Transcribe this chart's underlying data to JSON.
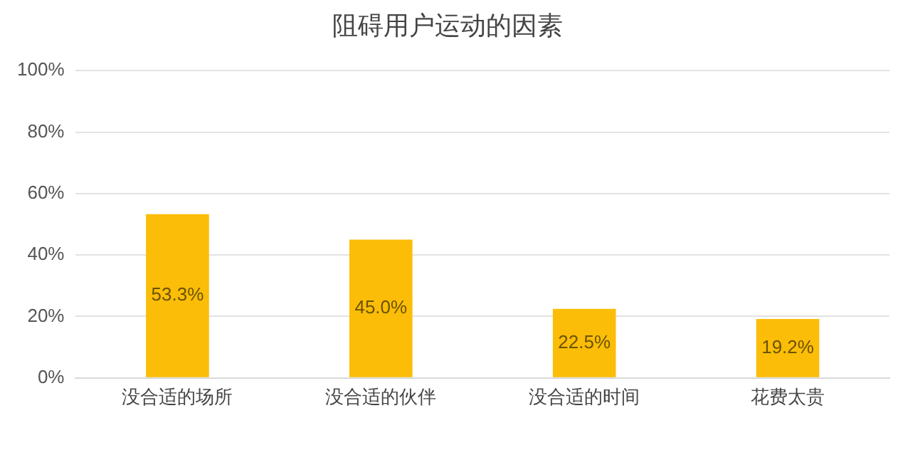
{
  "chart_data": {
    "type": "bar",
    "title": "阻碍用户运动的因素",
    "categories": [
      "没合适的场所",
      "没合适的伙伴",
      "没合适的时间",
      "花费太贵"
    ],
    "values": [
      53.3,
      45.0,
      22.5,
      19.2
    ],
    "color": "#fbbd08",
    "value_labels": [
      "53.3%",
      "45.0%",
      "22.5%",
      "19.2%"
    ],
    "ylim": [
      0,
      100
    ],
    "yticks": [
      {
        "value": 0,
        "label": "0%"
      },
      {
        "value": 20,
        "label": "20%"
      },
      {
        "value": 40,
        "label": "40%"
      },
      {
        "value": 60,
        "label": "60%"
      },
      {
        "value": 80,
        "label": "80%"
      },
      {
        "value": 100,
        "label": "100%"
      }
    ],
    "grid": "y",
    "legend": false
  }
}
